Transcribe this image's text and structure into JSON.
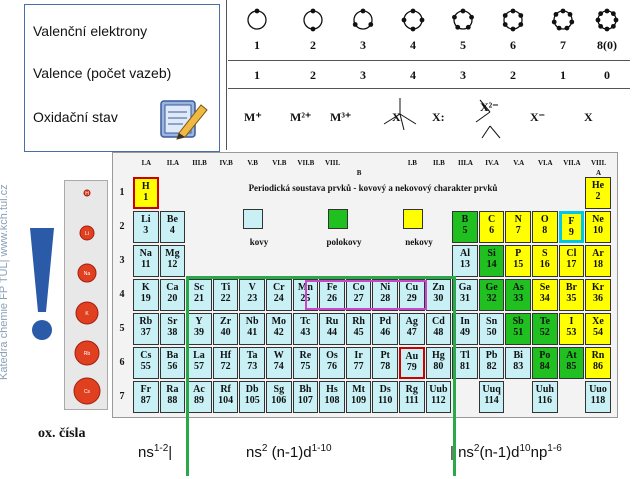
{
  "legend": {
    "line1": "Valenční elektrony",
    "line2": "Valence (počet vazeb)",
    "line3": "Oxidační stav"
  },
  "side_text": "Katedra chemie FP TUL| www.kch.tul.cz",
  "groups_top": {
    "numbers": [
      "1",
      "2",
      "3",
      "4",
      "5",
      "6",
      "7",
      "8(0)"
    ],
    "valences": [
      "1",
      "2",
      "3",
      "4",
      "3",
      "2",
      "1",
      "0"
    ],
    "ox_states": [
      "M⁺",
      "M²⁺",
      "M³⁺",
      "X",
      "X:",
      "X²⁻",
      "X⁻",
      "X"
    ]
  },
  "table": {
    "title": "Periodická soustava prvků - kovový a nekovový charakter prvků",
    "group_headers": [
      "I.A",
      "II.A",
      "III.B",
      "IV.B",
      "V.B",
      "VI.B",
      "VII.B",
      "VIII.",
      "I.B",
      "II.B",
      "III.A",
      "IV.A",
      "V.A",
      "VI.A",
      "VII.A",
      "VIII."
    ],
    "group_sub": [
      "B",
      "A"
    ],
    "periods": [
      "1",
      "2",
      "3",
      "4",
      "5",
      "6",
      "7"
    ],
    "legend": {
      "metals": "kovy",
      "semimetals": "polokovy",
      "nonmetals": "nekovy"
    },
    "colors": {
      "metal": "#c8f0f5",
      "semimetal": "#1fc01f",
      "nonmetal": "#ffff00",
      "noble": "#ffff00",
      "selected": "#cc0000",
      "fluorine": "#00c8e0",
      "highlight": "#cc44cc"
    },
    "elements": [
      {
        "s": "H",
        "z": "1",
        "c": "n",
        "col": 1,
        "row": 1,
        "box": "red"
      },
      {
        "s": "He",
        "z": "2",
        "c": "n",
        "col": 18,
        "row": 1
      },
      {
        "s": "Li",
        "z": "3",
        "c": "m",
        "col": 1,
        "row": 2
      },
      {
        "s": "Be",
        "z": "4",
        "c": "m",
        "col": 2,
        "row": 2
      },
      {
        "s": "B",
        "z": "5",
        "c": "p",
        "col": 13,
        "row": 2
      },
      {
        "s": "C",
        "z": "6",
        "c": "n",
        "col": 14,
        "row": 2
      },
      {
        "s": "N",
        "z": "7",
        "c": "n",
        "col": 15,
        "row": 2
      },
      {
        "s": "O",
        "z": "8",
        "c": "n",
        "col": 16,
        "row": 2
      },
      {
        "s": "F",
        "z": "9",
        "c": "n",
        "col": 17,
        "row": 2,
        "box": "cyan"
      },
      {
        "s": "Ne",
        "z": "10",
        "c": "n",
        "col": 18,
        "row": 2
      },
      {
        "s": "Na",
        "z": "11",
        "c": "m",
        "col": 1,
        "row": 3
      },
      {
        "s": "Mg",
        "z": "12",
        "c": "m",
        "col": 2,
        "row": 3
      },
      {
        "s": "Al",
        "z": "13",
        "c": "m",
        "col": 13,
        "row": 3
      },
      {
        "s": "Si",
        "z": "14",
        "c": "p",
        "col": 14,
        "row": 3
      },
      {
        "s": "P",
        "z": "15",
        "c": "n",
        "col": 15,
        "row": 3
      },
      {
        "s": "S",
        "z": "16",
        "c": "n",
        "col": 16,
        "row": 3
      },
      {
        "s": "Cl",
        "z": "17",
        "c": "n",
        "col": 17,
        "row": 3
      },
      {
        "s": "Ar",
        "z": "18",
        "c": "n",
        "col": 18,
        "row": 3
      },
      {
        "s": "K",
        "z": "19",
        "c": "m",
        "col": 1,
        "row": 4
      },
      {
        "s": "Ca",
        "z": "20",
        "c": "m",
        "col": 2,
        "row": 4
      },
      {
        "s": "Sc",
        "z": "21",
        "c": "m",
        "col": 3,
        "row": 4
      },
      {
        "s": "Ti",
        "z": "22",
        "c": "m",
        "col": 4,
        "row": 4
      },
      {
        "s": "V",
        "z": "23",
        "c": "m",
        "col": 5,
        "row": 4
      },
      {
        "s": "Cr",
        "z": "24",
        "c": "m",
        "col": 6,
        "row": 4
      },
      {
        "s": "Mn",
        "z": "25",
        "c": "m",
        "col": 7,
        "row": 4
      },
      {
        "s": "Fe",
        "z": "26",
        "c": "m",
        "col": 8,
        "row": 4
      },
      {
        "s": "Co",
        "z": "27",
        "c": "m",
        "col": 9,
        "row": 4
      },
      {
        "s": "Ni",
        "z": "28",
        "c": "m",
        "col": 10,
        "row": 4
      },
      {
        "s": "Cu",
        "z": "29",
        "c": "m",
        "col": 11,
        "row": 4
      },
      {
        "s": "Zn",
        "z": "30",
        "c": "m",
        "col": 12,
        "row": 4
      },
      {
        "s": "Ga",
        "z": "31",
        "c": "m",
        "col": 13,
        "row": 4
      },
      {
        "s": "Ge",
        "z": "32",
        "c": "p",
        "col": 14,
        "row": 4
      },
      {
        "s": "As",
        "z": "33",
        "c": "p",
        "col": 15,
        "row": 4
      },
      {
        "s": "Se",
        "z": "34",
        "c": "n",
        "col": 16,
        "row": 4
      },
      {
        "s": "Br",
        "z": "35",
        "c": "n",
        "col": 17,
        "row": 4
      },
      {
        "s": "Kr",
        "z": "36",
        "c": "n",
        "col": 18,
        "row": 4
      },
      {
        "s": "Rb",
        "z": "37",
        "c": "m",
        "col": 1,
        "row": 5
      },
      {
        "s": "Sr",
        "z": "38",
        "c": "m",
        "col": 2,
        "row": 5
      },
      {
        "s": "Y",
        "z": "39",
        "c": "m",
        "col": 3,
        "row": 5
      },
      {
        "s": "Zr",
        "z": "40",
        "c": "m",
        "col": 4,
        "row": 5
      },
      {
        "s": "Nb",
        "z": "41",
        "c": "m",
        "col": 5,
        "row": 5
      },
      {
        "s": "Mo",
        "z": "42",
        "c": "m",
        "col": 6,
        "row": 5
      },
      {
        "s": "Tc",
        "z": "43",
        "c": "m",
        "col": 7,
        "row": 5
      },
      {
        "s": "Ru",
        "z": "44",
        "c": "m",
        "col": 8,
        "row": 5
      },
      {
        "s": "Rh",
        "z": "45",
        "c": "m",
        "col": 9,
        "row": 5
      },
      {
        "s": "Pd",
        "z": "46",
        "c": "m",
        "col": 10,
        "row": 5
      },
      {
        "s": "Ag",
        "z": "47",
        "c": "m",
        "col": 11,
        "row": 5
      },
      {
        "s": "Cd",
        "z": "48",
        "c": "m",
        "col": 12,
        "row": 5
      },
      {
        "s": "In",
        "z": "49",
        "c": "m",
        "col": 13,
        "row": 5
      },
      {
        "s": "Sn",
        "z": "50",
        "c": "m",
        "col": 14,
        "row": 5
      },
      {
        "s": "Sb",
        "z": "51",
        "c": "p",
        "col": 15,
        "row": 5
      },
      {
        "s": "Te",
        "z": "52",
        "c": "p",
        "col": 16,
        "row": 5
      },
      {
        "s": "I",
        "z": "53",
        "c": "n",
        "col": 17,
        "row": 5
      },
      {
        "s": "Xe",
        "z": "54",
        "c": "n",
        "col": 18,
        "row": 5
      },
      {
        "s": "Cs",
        "z": "55",
        "c": "m",
        "col": 1,
        "row": 6
      },
      {
        "s": "Ba",
        "z": "56",
        "c": "m",
        "col": 2,
        "row": 6
      },
      {
        "s": "La",
        "z": "57",
        "c": "m",
        "col": 3,
        "row": 6
      },
      {
        "s": "Hf",
        "z": "72",
        "c": "m",
        "col": 4,
        "row": 6
      },
      {
        "s": "Ta",
        "z": "73",
        "c": "m",
        "col": 5,
        "row": 6
      },
      {
        "s": "W",
        "z": "74",
        "c": "m",
        "col": 6,
        "row": 6
      },
      {
        "s": "Re",
        "z": "75",
        "c": "m",
        "col": 7,
        "row": 6
      },
      {
        "s": "Os",
        "z": "76",
        "c": "m",
        "col": 8,
        "row": 6
      },
      {
        "s": "Ir",
        "z": "77",
        "c": "m",
        "col": 9,
        "row": 6
      },
      {
        "s": "Pt",
        "z": "78",
        "c": "m",
        "col": 10,
        "row": 6
      },
      {
        "s": "Au",
        "z": "79",
        "c": "m",
        "col": 11,
        "row": 6,
        "box": "red"
      },
      {
        "s": "Hg",
        "z": "80",
        "c": "m",
        "col": 12,
        "row": 6
      },
      {
        "s": "Tl",
        "z": "81",
        "c": "m",
        "col": 13,
        "row": 6
      },
      {
        "s": "Pb",
        "z": "82",
        "c": "m",
        "col": 14,
        "row": 6
      },
      {
        "s": "Bi",
        "z": "83",
        "c": "m",
        "col": 15,
        "row": 6
      },
      {
        "s": "Po",
        "z": "84",
        "c": "p",
        "col": 16,
        "row": 6
      },
      {
        "s": "At",
        "z": "85",
        "c": "p",
        "col": 17,
        "row": 6
      },
      {
        "s": "Rn",
        "z": "86",
        "c": "n",
        "col": 18,
        "row": 6
      },
      {
        "s": "Fr",
        "z": "87",
        "c": "m",
        "col": 1,
        "row": 7
      },
      {
        "s": "Ra",
        "z": "88",
        "c": "m",
        "col": 2,
        "row": 7
      },
      {
        "s": "Ac",
        "z": "89",
        "c": "m",
        "col": 3,
        "row": 7
      },
      {
        "s": "Rf",
        "z": "104",
        "c": "m",
        "col": 4,
        "row": 7
      },
      {
        "s": "Db",
        "z": "105",
        "c": "m",
        "col": 5,
        "row": 7
      },
      {
        "s": "Sg",
        "z": "106",
        "c": "m",
        "col": 6,
        "row": 7
      },
      {
        "s": "Bh",
        "z": "107",
        "c": "m",
        "col": 7,
        "row": 7
      },
      {
        "s": "Hs",
        "z": "108",
        "c": "m",
        "col": 8,
        "row": 7
      },
      {
        "s": "Mt",
        "z": "109",
        "c": "m",
        "col": 9,
        "row": 7
      },
      {
        "s": "Ds",
        "z": "110",
        "c": "m",
        "col": 10,
        "row": 7
      },
      {
        "s": "Rg",
        "z": "111",
        "c": "m",
        "col": 11,
        "row": 7
      },
      {
        "s": "Uub",
        "z": "112",
        "c": "m",
        "col": 12,
        "row": 7
      },
      {
        "s": "Uuq",
        "z": "114",
        "c": "m",
        "col": 14,
        "row": 7
      },
      {
        "s": "Uuh",
        "z": "116",
        "c": "m",
        "col": 16,
        "row": 7
      },
      {
        "s": "Uuo",
        "z": "118",
        "c": "m",
        "col": 18,
        "row": 7
      }
    ]
  },
  "ox_label": "ox. čísla",
  "bottom": {
    "part1": "ns",
    "part1_sup": "1-2",
    "sep": "|",
    "part2a": "ns",
    "part2a_sup": "2",
    "part2b": " (n-1)d",
    "part2b_sup": "1-10",
    "part3a": "| ns",
    "part3a_sup": "2",
    "part3b": "(n-1)d",
    "part3b_sup": "10",
    "part3c": "np",
    "part3c_sup": "1-6"
  },
  "atoms_side": [
    "H",
    "Li",
    "Na",
    "K",
    "Rb",
    "Cs"
  ]
}
